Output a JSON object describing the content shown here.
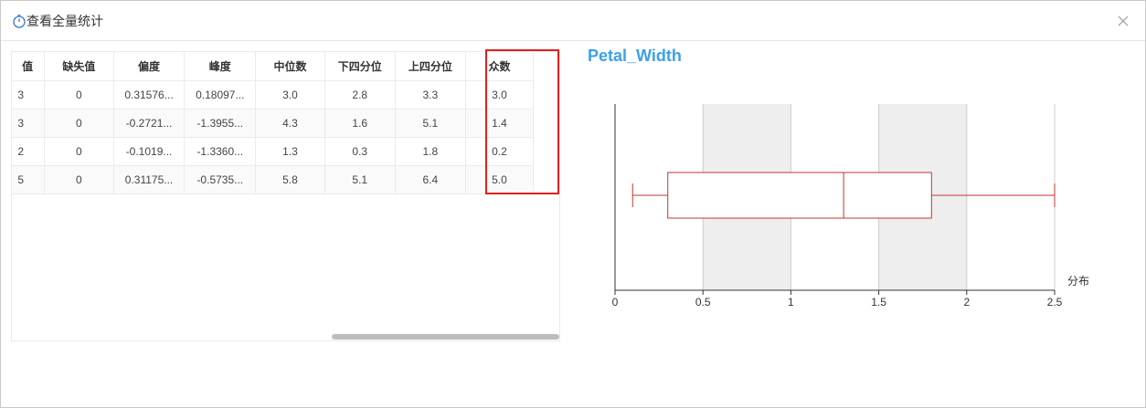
{
  "dialog": {
    "title": "查看全量统计",
    "icon": "stopwatch-icon",
    "close_icon": "close-icon"
  },
  "table": {
    "columns": [
      "值",
      "缺失值",
      "偏度",
      "峰度",
      "中位数",
      "下四分位",
      "上四分位",
      "众数"
    ],
    "rows": [
      [
        "3",
        "0",
        "0.31576...",
        "0.18097...",
        "3.0",
        "2.8",
        "3.3",
        "3.0"
      ],
      [
        "3",
        "0",
        "-0.2721...",
        "-1.3955...",
        "4.3",
        "1.6",
        "5.1",
        "1.4"
      ],
      [
        "2",
        "0",
        "-0.1019...",
        "-1.3360...",
        "1.3",
        "0.3",
        "1.8",
        "0.2"
      ],
      [
        "5",
        "0",
        "0.31175...",
        "-0.5735...",
        "5.8",
        "5.1",
        "6.4",
        "5.0"
      ]
    ],
    "highlight_column": "众数"
  },
  "colors": {
    "highlight_border": "#e02020",
    "chart_title": "#3ba0f0",
    "box_stroke": "#c23531",
    "band_fill": "#eeeeee"
  },
  "chart_data": {
    "type": "boxplot",
    "title": "Petal_Width",
    "xlabel": "分布",
    "xlim": [
      0,
      2.5
    ],
    "ticks": [
      0,
      0.5,
      1,
      1.5,
      2,
      2.5
    ],
    "tick_labels": [
      "0",
      "0.5",
      "1",
      "1.5",
      "2",
      "2.5"
    ],
    "box": {
      "min": 0.1,
      "q1": 0.3,
      "median": 1.3,
      "q3": 1.8,
      "max": 2.5
    },
    "alternating_bands": true
  }
}
